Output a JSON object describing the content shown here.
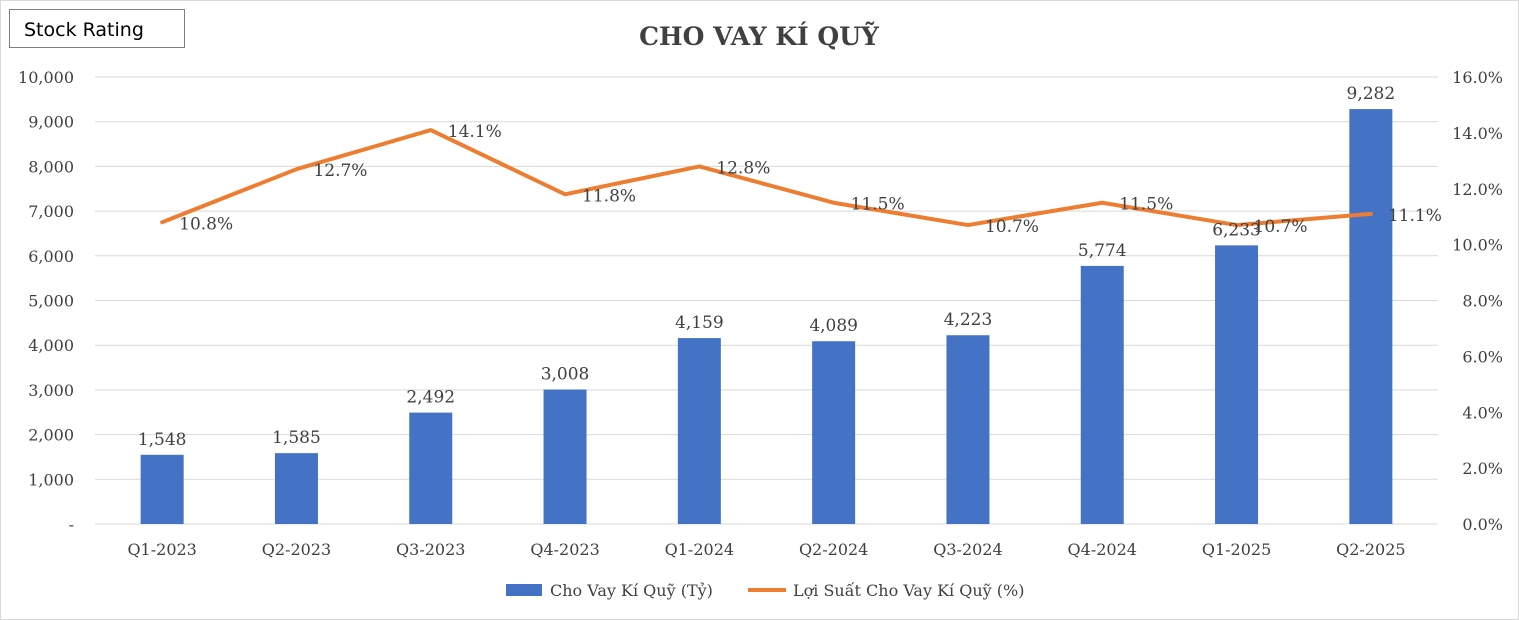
{
  "badge": {
    "label": "Stock Rating"
  },
  "colors": {
    "bar": "#4472C4",
    "line": "#ED7D31",
    "grid": "#d9d9d9",
    "text": "#404040"
  },
  "chart_data": {
    "type": "bar",
    "title": "CHO VAY KÍ QUỸ",
    "categories": [
      "Q1-2023",
      "Q2-2023",
      "Q3-2023",
      "Q4-2023",
      "Q1-2024",
      "Q2-2024",
      "Q3-2024",
      "Q4-2024",
      "Q1-2025",
      "Q2-2025"
    ],
    "series": [
      {
        "name": "Cho Vay Kí Quỹ (Tỷ)",
        "type": "bar",
        "axis": "left",
        "values": [
          1548,
          1585,
          2492,
          3008,
          4159,
          4089,
          4223,
          5774,
          6233,
          9282
        ],
        "labels": [
          "1,548",
          "1,585",
          "2,492",
          "3,008",
          "4,159",
          "4,089",
          "4,223",
          "5,774",
          "6,233",
          "9,282"
        ]
      },
      {
        "name": "Lợi Suất Cho Vay Kí Quỹ (%)",
        "type": "line",
        "axis": "right",
        "values": [
          10.8,
          12.7,
          14.1,
          11.8,
          12.8,
          11.5,
          10.7,
          11.5,
          10.7,
          11.1
        ],
        "labels": [
          "10.8%",
          "12.7%",
          "14.1%",
          "11.8%",
          "12.8%",
          "11.5%",
          "10.7%",
          "11.5%",
          "10.7%",
          "11.1%"
        ]
      }
    ],
    "y_left": {
      "range": [
        0,
        10000
      ],
      "ticks": [
        0,
        1000,
        2000,
        3000,
        4000,
        5000,
        6000,
        7000,
        8000,
        9000,
        10000
      ],
      "tick_labels": [
        "-",
        "1,000",
        "2,000",
        "3,000",
        "4,000",
        "5,000",
        "6,000",
        "7,000",
        "8,000",
        "9,000",
        "10,000"
      ]
    },
    "y_right": {
      "range": [
        0,
        16
      ],
      "ticks": [
        0,
        2,
        4,
        6,
        8,
        10,
        12,
        14,
        16
      ],
      "tick_labels": [
        "0.0%",
        "2.0%",
        "4.0%",
        "6.0%",
        "8.0%",
        "10.0%",
        "12.0%",
        "14.0%",
        "16.0%"
      ]
    },
    "grid": true,
    "legend_position": "bottom-center"
  }
}
